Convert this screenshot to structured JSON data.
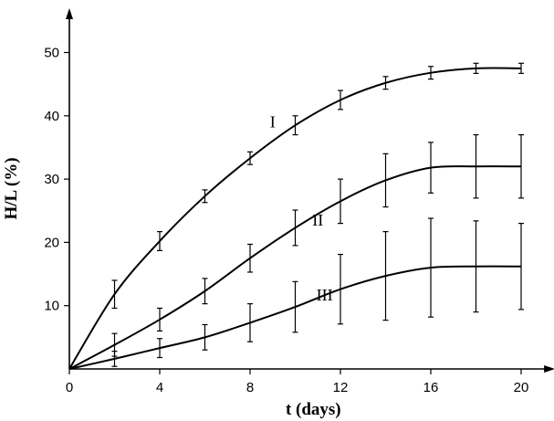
{
  "chart_data": {
    "type": "line",
    "title": "",
    "xlabel": "t (days)",
    "ylabel": "H/L (%)",
    "xlim": [
      0,
      21.5
    ],
    "ylim": [
      0,
      57
    ],
    "xticks": [
      0,
      4,
      8,
      12,
      16,
      20
    ],
    "yticks": [
      10,
      20,
      30,
      40,
      50
    ],
    "grid": false,
    "legend": "none",
    "series": [
      {
        "name": "I",
        "x": [
          0,
          2,
          4,
          6,
          8,
          10,
          12,
          14,
          16,
          18,
          20
        ],
        "y": [
          0,
          11.8,
          20.2,
          27.3,
          33.3,
          38.5,
          42.5,
          45.2,
          46.8,
          47.5,
          47.5
        ],
        "err": [
          0,
          2.2,
          1.5,
          1.0,
          1.0,
          1.5,
          1.5,
          1.0,
          1.0,
          0.8,
          0.8
        ]
      },
      {
        "name": "II",
        "x": [
          0,
          2,
          4,
          6,
          8,
          10,
          12,
          14,
          16,
          18,
          20
        ],
        "y": [
          0,
          3.8,
          7.8,
          12.3,
          17.5,
          22.3,
          26.5,
          29.8,
          31.8,
          32.0,
          32.0
        ],
        "err": [
          0,
          1.8,
          1.8,
          2.0,
          2.2,
          2.8,
          3.5,
          4.2,
          4.0,
          5.0,
          5.0
        ]
      },
      {
        "name": "III",
        "x": [
          0,
          2,
          4,
          6,
          8,
          10,
          12,
          14,
          16,
          18,
          20
        ],
        "y": [
          0,
          1.6,
          3.3,
          5.0,
          7.3,
          9.8,
          12.6,
          14.7,
          16.0,
          16.2,
          16.2
        ],
        "err": [
          0,
          1.2,
          1.5,
          2.0,
          3.0,
          4.0,
          5.5,
          7.0,
          7.8,
          7.2,
          6.8
        ]
      }
    ]
  }
}
